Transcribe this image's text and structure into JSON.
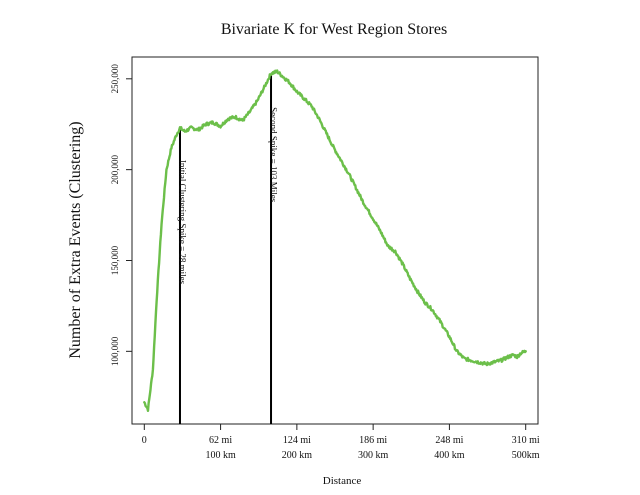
{
  "chart_data": {
    "type": "line",
    "title": "Bivariate K for West Region Stores",
    "xlabel": "Distance",
    "ylabel": "Number of Extra Events (Clustering)",
    "xlim": [
      -10,
      320
    ],
    "ylim": [
      60000,
      262000
    ],
    "color": "#6cbf4a",
    "x_ticks": [
      {
        "value": 0,
        "label": "0",
        "sublabel": ""
      },
      {
        "value": 62,
        "label": "62 mi",
        "sublabel": "100 km"
      },
      {
        "value": 124,
        "label": "124 mi",
        "sublabel": "200 km"
      },
      {
        "value": 186,
        "label": "186 mi",
        "sublabel": "300 km"
      },
      {
        "value": 248,
        "label": "248 mi",
        "sublabel": "400 km"
      },
      {
        "value": 310,
        "label": "310 mi",
        "sublabel": "500km"
      }
    ],
    "y_ticks": [
      {
        "value": 100000,
        "label": "100,000"
      },
      {
        "value": 150000,
        "label": "150,000"
      },
      {
        "value": 200000,
        "label": "200,000"
      },
      {
        "value": 250000,
        "label": "250,000"
      }
    ],
    "annotations": [
      {
        "x": 29,
        "y_top": 223000,
        "text": "Initial Clustering Spike = 28 miles"
      },
      {
        "x": 103,
        "y_top": 252000,
        "text": "Second Spike = 103 Miles"
      }
    ],
    "series": [
      {
        "name": "Bivariate K",
        "x": [
          0,
          3,
          7,
          10,
          14,
          18,
          22,
          26,
          29,
          33,
          38,
          44,
          50,
          56,
          62,
          68,
          74,
          80,
          86,
          92,
          98,
          103,
          108,
          113,
          118,
          124,
          130,
          136,
          142,
          148,
          154,
          160,
          166,
          172,
          178,
          186,
          192,
          198,
          204,
          210,
          216,
          222,
          228,
          234,
          240,
          248,
          254,
          260,
          266,
          272,
          278,
          284,
          290,
          296,
          300,
          303,
          306,
          310
        ],
        "y": [
          72000,
          68000,
          90000,
          128000,
          170000,
          200000,
          212000,
          219000,
          223000,
          221000,
          223000,
          222000,
          225000,
          226000,
          224000,
          228000,
          229000,
          227000,
          232000,
          238000,
          246000,
          253000,
          254000,
          251000,
          248000,
          243000,
          239000,
          235000,
          228000,
          220000,
          212000,
          205000,
          198000,
          190000,
          182000,
          173000,
          166000,
          158000,
          155000,
          148000,
          140000,
          133000,
          127000,
          123000,
          117000,
          108000,
          100000,
          96000,
          95000,
          94000,
          93000,
          94000,
          95000,
          97000,
          98000,
          97000,
          99000,
          100000
        ]
      }
    ]
  }
}
